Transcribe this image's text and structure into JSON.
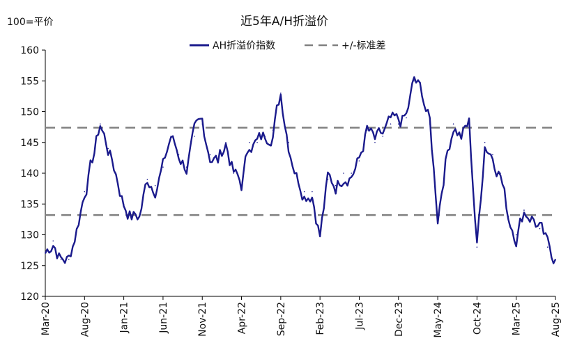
{
  "chart_data": {
    "type": "line",
    "title": "近5年A/H折溢价",
    "unit_label": "100=平价",
    "ylim": [
      120,
      160
    ],
    "y_ticks": [
      "120",
      "125",
      "130",
      "135",
      "140",
      "145",
      "150",
      "155",
      "160"
    ],
    "x_ticks": [
      "Mar-20",
      "Aug-20",
      "Jan-21",
      "Jun-21",
      "Nov-21",
      "Apr-22",
      "Sep-22",
      "Feb-23",
      "Jul-23",
      "Dec-23",
      "May-24",
      "Oct-24",
      "Mar-25",
      "Aug-25"
    ],
    "legend": [
      {
        "name": "AH折溢价指数",
        "style": "solid",
        "color": "#1a1a8c"
      },
      {
        "name": "+/-标准差",
        "style": "dashed",
        "color": "#808080"
      }
    ],
    "grid": false,
    "series": [
      {
        "name": "AH折溢价指数",
        "color": "#1a1a8c",
        "x": [
          "2020-03",
          "2020-04",
          "2020-05",
          "2020-06",
          "2020-07",
          "2020-08",
          "2020-09",
          "2020-10",
          "2020-11",
          "2020-12",
          "2021-01",
          "2021-02",
          "2021-03",
          "2021-04",
          "2021-05",
          "2021-06",
          "2021-07",
          "2021-08",
          "2021-09",
          "2021-10",
          "2021-11",
          "2021-12",
          "2022-01",
          "2022-02",
          "2022-03",
          "2022-04",
          "2022-05",
          "2022-06",
          "2022-07",
          "2022-08",
          "2022-09",
          "2022-10",
          "2022-11",
          "2022-12",
          "2023-01",
          "2023-02",
          "2023-03",
          "2023-04",
          "2023-05",
          "2023-06",
          "2023-07",
          "2023-08",
          "2023-09",
          "2023-10",
          "2023-11",
          "2023-12",
          "2024-01",
          "2024-02",
          "2024-03",
          "2024-04",
          "2024-05",
          "2024-06",
          "2024-07",
          "2024-08",
          "2024-09",
          "2024-10",
          "2024-11",
          "2024-12",
          "2025-01",
          "2025-02",
          "2025-03",
          "2025-04",
          "2025-05",
          "2025-06",
          "2025-07",
          "2025-08"
        ],
        "values": [
          127,
          129,
          126,
          126,
          131,
          137,
          142,
          148,
          144,
          140,
          135,
          133,
          133,
          139,
          138,
          141,
          146,
          143,
          141,
          146,
          148,
          143,
          142,
          145,
          140,
          138,
          145,
          145,
          146,
          147,
          153,
          145,
          140,
          137,
          137,
          130,
          139,
          138,
          140,
          140,
          142,
          147,
          145,
          146,
          148,
          148,
          149,
          155,
          153,
          148,
          133,
          142,
          148,
          146,
          148,
          128,
          145,
          143,
          140,
          133,
          130,
          134,
          133,
          131,
          128,
          126
        ]
      },
      {
        "name": "+1σ",
        "color": "#808080",
        "values": [
          147.4
        ]
      },
      {
        "name": "-1σ",
        "color": "#808080",
        "values": [
          133.2
        ]
      }
    ]
  }
}
